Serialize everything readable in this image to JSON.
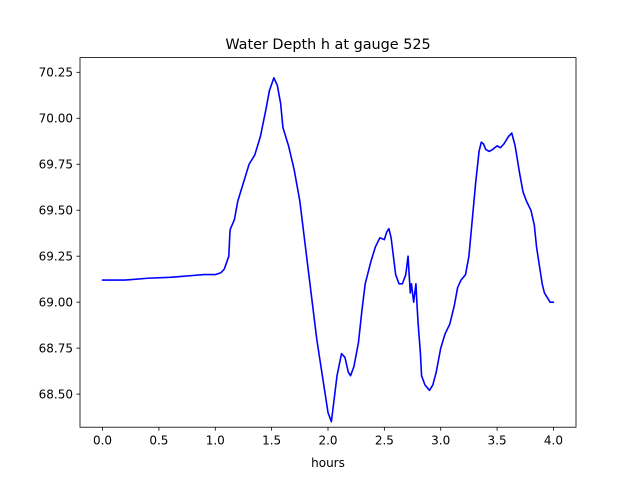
{
  "chart_data": {
    "type": "line",
    "title": "Water Depth h at gauge 525",
    "xlabel": "hours",
    "ylabel": "",
    "xlim": [
      -0.2,
      4.2
    ],
    "ylim": [
      68.32,
      70.33
    ],
    "xticks": [
      0.0,
      0.5,
      1.0,
      1.5,
      2.0,
      2.5,
      3.0,
      3.5,
      4.0
    ],
    "xtick_labels": [
      "0.0",
      "0.5",
      "1.0",
      "1.5",
      "2.0",
      "2.5",
      "3.0",
      "3.5",
      "4.0"
    ],
    "yticks": [
      68.5,
      68.75,
      69.0,
      69.25,
      69.5,
      69.75,
      70.0,
      70.25
    ],
    "ytick_labels": [
      "68.50",
      "68.75",
      "69.00",
      "69.25",
      "69.50",
      "69.75",
      "70.00",
      "70.25"
    ],
    "grid": false,
    "series": [
      {
        "color": "#0000ff",
        "x": [
          0.0,
          0.2,
          0.4,
          0.6,
          0.7,
          0.8,
          0.9,
          1.0,
          1.05,
          1.08,
          1.12,
          1.13,
          1.135,
          1.15,
          1.17,
          1.2,
          1.25,
          1.3,
          1.35,
          1.4,
          1.45,
          1.48,
          1.52,
          1.55,
          1.58,
          1.6,
          1.65,
          1.7,
          1.75,
          1.8,
          1.85,
          1.9,
          1.95,
          2.0,
          2.03,
          2.05,
          2.08,
          2.12,
          2.15,
          2.18,
          2.2,
          2.23,
          2.27,
          2.3,
          2.33,
          2.38,
          2.42,
          2.46,
          2.5,
          2.52,
          2.54,
          2.56,
          2.58,
          2.6,
          2.63,
          2.66,
          2.69,
          2.71,
          2.72,
          2.73,
          2.74,
          2.76,
          2.78,
          2.79,
          2.8,
          2.81,
          2.82,
          2.83,
          2.86,
          2.9,
          2.93,
          2.96,
          3.0,
          3.04,
          3.08,
          3.12,
          3.15,
          3.18,
          3.22,
          3.25,
          3.28,
          3.31,
          3.34,
          3.36,
          3.38,
          3.4,
          3.43,
          3.46,
          3.5,
          3.53,
          3.56,
          3.6,
          3.63,
          3.66,
          3.7,
          3.73,
          3.76,
          3.8,
          3.83,
          3.85,
          3.88,
          3.9,
          3.92,
          3.95,
          3.97,
          4.0
        ],
        "y": [
          69.12,
          69.12,
          69.13,
          69.135,
          69.14,
          69.145,
          69.15,
          69.15,
          69.16,
          69.18,
          69.25,
          69.38,
          69.4,
          69.42,
          69.45,
          69.55,
          69.65,
          69.75,
          69.8,
          69.9,
          70.05,
          70.15,
          70.22,
          70.18,
          70.08,
          69.95,
          69.85,
          69.72,
          69.55,
          69.3,
          69.05,
          68.8,
          68.6,
          68.4,
          68.35,
          68.45,
          68.6,
          68.72,
          68.7,
          68.62,
          68.6,
          68.65,
          68.78,
          68.95,
          69.1,
          69.22,
          69.3,
          69.35,
          69.34,
          69.38,
          69.4,
          69.35,
          69.25,
          69.15,
          69.1,
          69.1,
          69.15,
          69.25,
          69.15,
          69.05,
          69.1,
          69.0,
          69.1,
          68.98,
          68.88,
          68.8,
          68.72,
          68.6,
          68.55,
          68.52,
          68.55,
          68.62,
          68.75,
          68.83,
          68.88,
          68.98,
          69.08,
          69.12,
          69.15,
          69.25,
          69.45,
          69.65,
          69.82,
          69.87,
          69.86,
          69.83,
          69.82,
          69.83,
          69.85,
          69.84,
          69.86,
          69.9,
          69.92,
          69.85,
          69.7,
          69.6,
          69.55,
          69.5,
          69.42,
          69.3,
          69.18,
          69.1,
          69.05,
          69.02,
          69.0,
          69.0
        ]
      }
    ]
  }
}
